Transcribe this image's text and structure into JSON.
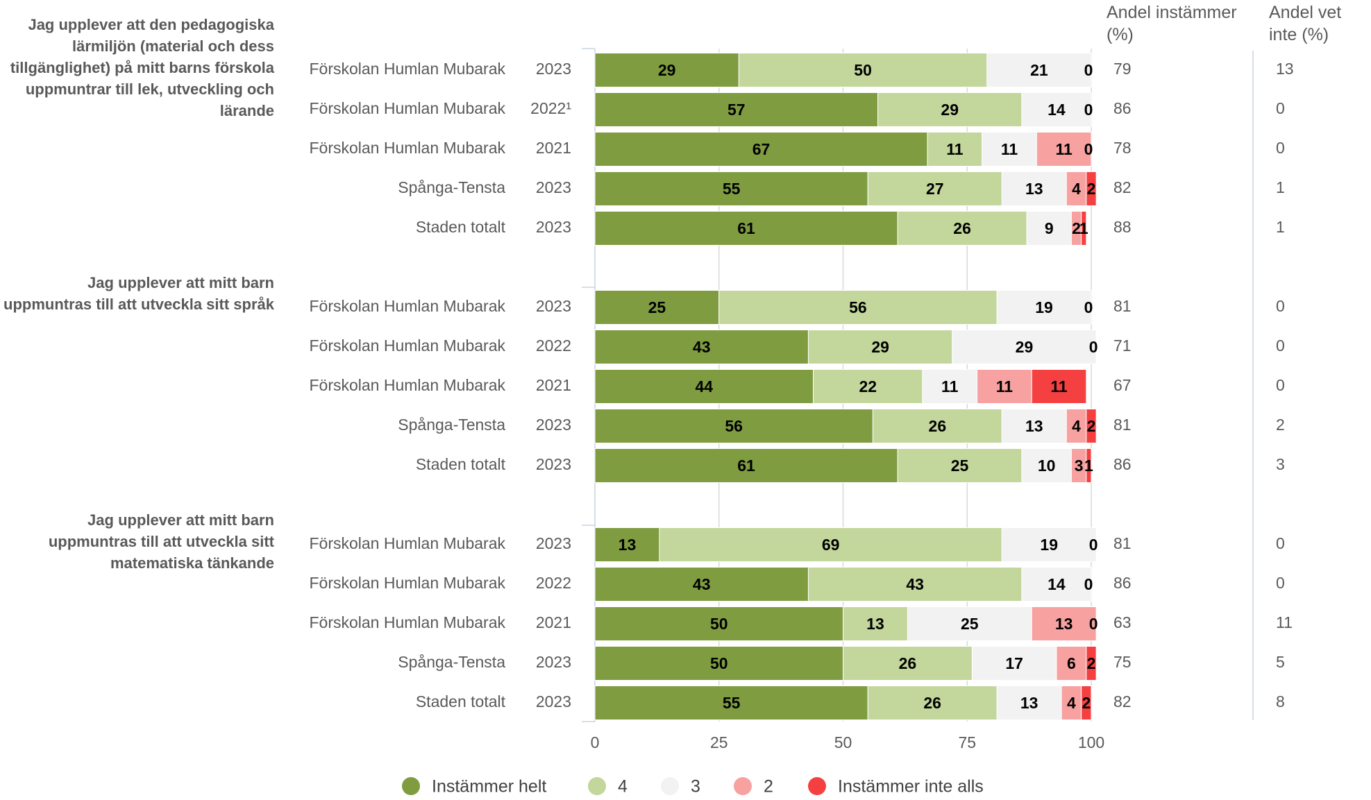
{
  "chart_data": {
    "type": "bar",
    "orientation": "horizontal",
    "stacked": true,
    "xlim": [
      0,
      100
    ],
    "xticks": [
      0,
      25,
      50,
      75,
      100
    ],
    "grid": true,
    "series": [
      {
        "name": "Instämmer helt",
        "color": "#7f9c41"
      },
      {
        "name": "4",
        "color": "#c3d69b"
      },
      {
        "name": "3",
        "color": "#f2f2f2"
      },
      {
        "name": "2",
        "color": "#f7a1a1"
      },
      {
        "name": "Instämmer inte alls",
        "color": "#f44040"
      }
    ],
    "columns": [
      "Andel instämmer (%)",
      "Andel vet inte (%)"
    ],
    "groups": [
      {
        "question": "Jag upplever att den pedagogiska lärmiljön (material och dess tillgänglighet) på mitt barns förskola uppmuntrar till lek, utveckling och lärande",
        "categories": [
          "Förskolan Humlan Mubarak",
          "Förskolan Humlan Mubarak",
          "Förskolan Humlan Mubarak",
          "Spånga-Tensta",
          "Staden totalt"
        ],
        "years": [
          "2023",
          "2022¹",
          "2021",
          "2023",
          "2023"
        ],
        "values": [
          [
            29,
            50,
            21,
            null,
            0
          ],
          [
            57,
            29,
            14,
            null,
            0
          ],
          [
            67,
            11,
            11,
            11,
            0
          ],
          [
            55,
            27,
            13,
            4,
            2
          ],
          [
            61,
            26,
            9,
            2,
            1
          ]
        ],
        "share_agree": [
          79,
          86,
          78,
          82,
          88
        ],
        "share_unsure": [
          13,
          0,
          0,
          1,
          1
        ]
      },
      {
        "question": "Jag upplever att mitt barn uppmuntras till att utveckla sitt språk",
        "categories": [
          "Förskolan Humlan Mubarak",
          "Förskolan Humlan Mubarak",
          "Förskolan Humlan Mubarak",
          "Spånga-Tensta",
          "Staden totalt"
        ],
        "years": [
          "2023",
          "2022",
          "2021",
          "2023",
          "2023"
        ],
        "values": [
          [
            25,
            56,
            19,
            null,
            0
          ],
          [
            43,
            29,
            29,
            null,
            0
          ],
          [
            44,
            22,
            11,
            11,
            11
          ],
          [
            56,
            26,
            13,
            4,
            2
          ],
          [
            61,
            25,
            10,
            3,
            1
          ]
        ],
        "share_agree": [
          81,
          71,
          67,
          81,
          86
        ],
        "share_unsure": [
          0,
          0,
          0,
          2,
          3
        ]
      },
      {
        "question": "Jag upplever att mitt barn uppmuntras till att utveckla sitt matematiska tänkande",
        "categories": [
          "Förskolan Humlan Mubarak",
          "Förskolan Humlan Mubarak",
          "Förskolan Humlan Mubarak",
          "Spånga-Tensta",
          "Staden totalt"
        ],
        "years": [
          "2023",
          "2022",
          "2021",
          "2023",
          "2023"
        ],
        "values": [
          [
            13,
            69,
            19,
            null,
            0
          ],
          [
            43,
            43,
            14,
            null,
            0
          ],
          [
            50,
            13,
            25,
            13,
            0
          ],
          [
            50,
            26,
            17,
            6,
            2
          ],
          [
            55,
            26,
            13,
            4,
            2
          ]
        ],
        "share_agree": [
          81,
          86,
          63,
          75,
          82
        ],
        "share_unsure": [
          0,
          0,
          11,
          5,
          8
        ]
      }
    ]
  }
}
